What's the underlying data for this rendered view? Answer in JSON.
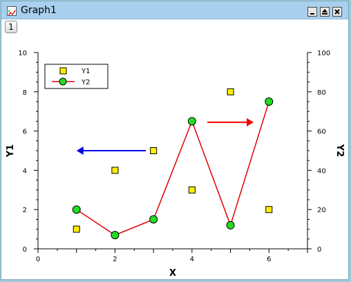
{
  "window": {
    "title": "Graph1",
    "layer_tab": "1"
  },
  "icons": {
    "app": "graph-window-icon",
    "minimize": "minimize-icon",
    "restore": "restore-icon",
    "close": "close-icon",
    "left_arrow": "left-arrow-annotation",
    "right_arrow": "right-arrow-annotation"
  },
  "chart_data": {
    "type": "scatter",
    "xlabel": "X",
    "ylabel_left": "Y1",
    "ylabel_right": "Y2",
    "xlim": [
      0,
      7
    ],
    "ylim_left": [
      0,
      10
    ],
    "ylim_right": [
      0,
      100
    ],
    "x_ticks": [
      0,
      2,
      4,
      6
    ],
    "y_left_ticks": [
      0,
      2,
      4,
      6,
      8,
      10
    ],
    "y_right_ticks": [
      0,
      20,
      40,
      60,
      80,
      100
    ],
    "grid": false,
    "legend_position": "top-left",
    "series": [
      {
        "name": "Y1",
        "axis": "left",
        "style": "square markers",
        "marker_color": "#ffee00",
        "x": [
          1,
          2,
          3,
          4,
          5,
          6
        ],
        "y": [
          1,
          4,
          5,
          3,
          8,
          2
        ]
      },
      {
        "name": "Y2",
        "axis": "right",
        "style": "line + circle markers",
        "line_color": "#e00000",
        "marker_color": "#22dd22",
        "x": [
          1,
          2,
          3,
          4,
          5,
          6
        ],
        "y": [
          20,
          7,
          15,
          65,
          12,
          75
        ]
      }
    ],
    "annotations": [
      {
        "type": "arrow",
        "direction": "left",
        "color": "#0000ee",
        "axis": "left",
        "from": [
          2.8,
          5
        ],
        "to": [
          1,
          5
        ]
      },
      {
        "type": "arrow",
        "direction": "right",
        "color": "#ee0000",
        "axis": "left",
        "from": [
          4.4,
          6.45
        ],
        "to": [
          5.6,
          6.45
        ]
      }
    ]
  }
}
